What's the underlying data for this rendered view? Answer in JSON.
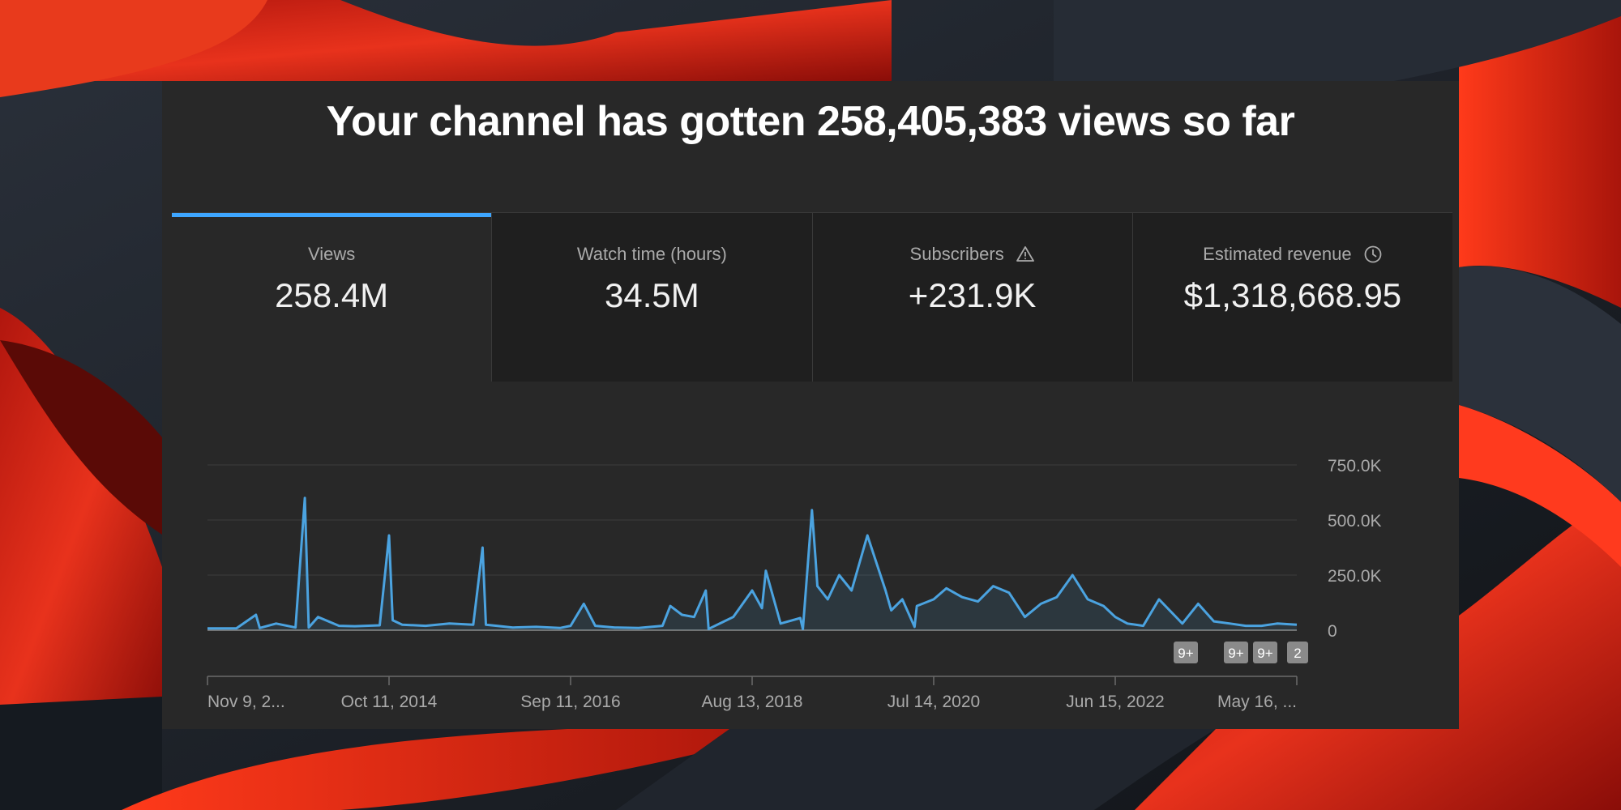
{
  "headline": "Your channel has gotten 258,405,383 views so far",
  "tabs": [
    {
      "label": "Views",
      "value": "258.4M",
      "icon": null,
      "active": true
    },
    {
      "label": "Watch time (hours)",
      "value": "34.5M",
      "icon": null,
      "active": false
    },
    {
      "label": "Subscribers",
      "value": "+231.9K",
      "icon": "warning-icon",
      "active": false
    },
    {
      "label": "Estimated revenue",
      "value": "$1,318,668.95",
      "icon": "clock-icon",
      "active": false
    }
  ],
  "colors": {
    "accent": "#3ea6ff",
    "line": "#4ba3e0",
    "panel": "#282828"
  },
  "chart_data": {
    "type": "line",
    "ylim": [
      0,
      750000
    ],
    "y_tick_labels": [
      "750.0K",
      "500.0K",
      "250.0K",
      "0"
    ],
    "x_tick_labels": [
      "Nov 9, 2...",
      "Oct 11, 2014",
      "Sep 11, 2016",
      "Aug 13, 2018",
      "Jul 14, 2020",
      "Jun 15, 2022",
      "May 16, ..."
    ],
    "x_range": [
      "2012-11-09",
      "2024-05-16"
    ],
    "series": [
      {
        "x": [
          "2012-11-09",
          "2013-03-01",
          "2013-05-15",
          "2013-05-30",
          "2013-08-01",
          "2013-10-15",
          "2013-11-20",
          "2013-12-05",
          "2014-01-10",
          "2014-04-01",
          "2014-06-01",
          "2014-09-05",
          "2014-10-11",
          "2014-10-25",
          "2014-12-01",
          "2015-03-01",
          "2015-06-01",
          "2015-09-01",
          "2015-10-07",
          "2015-10-20",
          "2015-12-01",
          "2016-02-01",
          "2016-05-01",
          "2016-08-01",
          "2016-09-11",
          "2016-11-01",
          "2016-12-15",
          "2017-03-01",
          "2017-06-01",
          "2017-09-01",
          "2017-10-01",
          "2017-11-15",
          "2018-01-01",
          "2018-02-15",
          "2018-02-26",
          "2018-03-05",
          "2018-06-01",
          "2018-08-13",
          "2018-09-20",
          "2018-10-05",
          "2018-12-01",
          "2019-02-15",
          "2019-02-25",
          "2019-04-01",
          "2019-04-15",
          "2019-04-22",
          "2019-06-01",
          "2019-07-15",
          "2019-09-01",
          "2019-11-01",
          "2020-01-10",
          "2020-02-01",
          "2020-03-15",
          "2020-05-01",
          "2020-05-10",
          "2020-07-14",
          "2020-09-01",
          "2020-11-01",
          "2021-01-01",
          "2021-03-01",
          "2021-05-01",
          "2021-07-01",
          "2021-09-01",
          "2021-11-01",
          "2022-01-01",
          "2022-03-01",
          "2022-05-01",
          "2022-06-15",
          "2022-08-01",
          "2022-10-01",
          "2022-12-01",
          "2023-03-01",
          "2023-05-01",
          "2023-07-01",
          "2023-09-01",
          "2023-11-01",
          "2024-01-01",
          "2024-03-01",
          "2024-05-16"
        ],
        "y": [
          8000,
          9000,
          70000,
          10000,
          30000,
          12000,
          600000,
          12000,
          60000,
          20000,
          18000,
          22000,
          430000,
          45000,
          25000,
          20000,
          30000,
          25000,
          375000,
          25000,
          20000,
          12000,
          15000,
          10000,
          20000,
          120000,
          20000,
          12000,
          10000,
          20000,
          110000,
          70000,
          60000,
          180000,
          5000,
          10000,
          60000,
          180000,
          100000,
          270000,
          30000,
          55000,
          5000,
          545000,
          320000,
          200000,
          140000,
          250000,
          180000,
          430000,
          180000,
          90000,
          140000,
          15000,
          110000,
          140000,
          190000,
          150000,
          130000,
          200000,
          170000,
          60000,
          120000,
          150000,
          250000,
          140000,
          110000,
          60000,
          30000,
          20000,
          140000,
          30000,
          120000,
          40000,
          30000,
          20000,
          20000,
          30000,
          25000
        ]
      }
    ],
    "badges": [
      "9+",
      "9+",
      "9+",
      "2"
    ]
  }
}
